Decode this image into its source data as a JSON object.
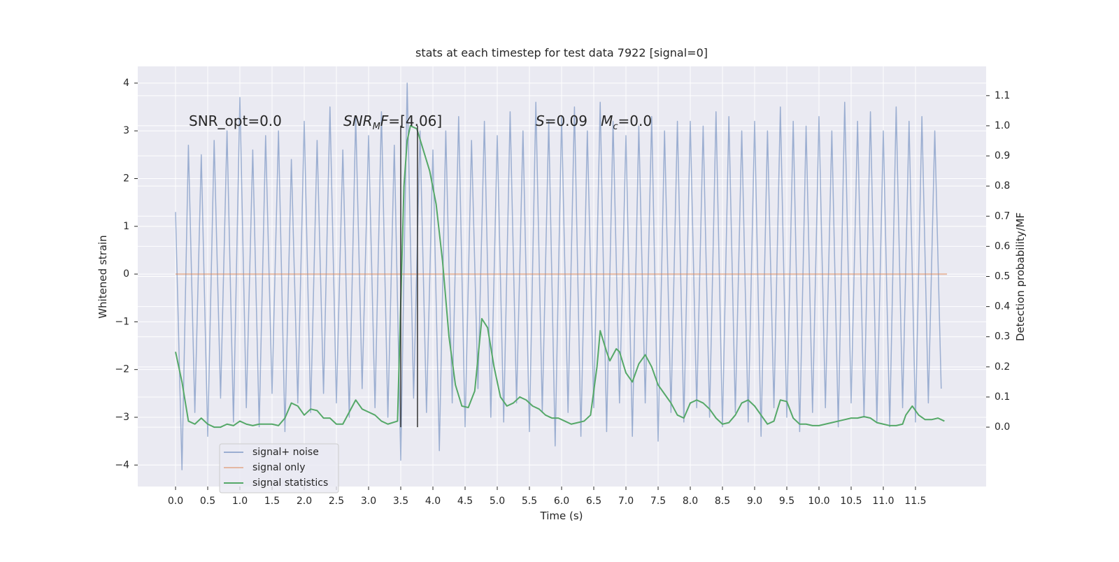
{
  "chart_data": {
    "type": "line",
    "title": "stats at each timestep for test data 7922 [signal=0]",
    "xlabel": "Time (s)",
    "ylabel": "Whitened strain",
    "y2label": "Detection probability/MF",
    "xlim": [
      -0.587,
      12.598
    ],
    "ylim": [
      -4.45,
      4.35
    ],
    "y2lim": [
      -0.197,
      1.197
    ],
    "xticks": [
      {
        "value": 0,
        "label": "0.0"
      },
      0.5,
      {
        "value": 1,
        "label": "1.0"
      },
      1.5,
      {
        "value": 2,
        "label": "2.0"
      },
      2.5,
      {
        "value": 3,
        "label": "3.0"
      },
      3.5,
      {
        "value": 4,
        "label": "4.0"
      },
      4.5,
      {
        "value": 5,
        "label": "5.0"
      },
      5.5,
      {
        "value": 6,
        "label": "6.0"
      },
      6.5,
      {
        "value": 7,
        "label": "7.0"
      },
      7.5,
      {
        "value": 8,
        "label": "8.0"
      },
      8.5,
      {
        "value": 9,
        "label": "9.0"
      },
      9.5,
      {
        "value": 10,
        "label": "10.0"
      },
      10.5,
      {
        "value": 11,
        "label": "11.0"
      },
      11.5
    ],
    "yticks": [
      {
        "value": -4,
        "label": "−4"
      },
      {
        "value": -3,
        "label": "−3"
      },
      {
        "value": -2,
        "label": "−2"
      },
      {
        "value": -1,
        "label": "−1"
      },
      0,
      1,
      2,
      3,
      4
    ],
    "y2ticks": [
      {
        "value": 0,
        "label": "0.0"
      },
      0.1,
      0.2,
      0.3,
      0.4,
      0.5,
      0.6,
      0.7,
      0.8,
      0.9,
      {
        "value": 1,
        "label": "1.0"
      },
      1.1
    ],
    "grid": true,
    "legend": "lower left",
    "series": [
      {
        "name": "signal+ noise",
        "color": "#4c72b0",
        "x": [
          0,
          0.1,
          0.2,
          0.3,
          0.4,
          0.5,
          0.6,
          0.7,
          0.8,
          0.9,
          1,
          1.1,
          1.2,
          1.3,
          1.4,
          1.5,
          1.6,
          1.7,
          1.8,
          1.9,
          2,
          2.1,
          2.2,
          2.3,
          2.4,
          2.5,
          2.6,
          2.7,
          2.8,
          2.9,
          3,
          3.1,
          3.2,
          3.3,
          3.4,
          3.5,
          3.6,
          3.7,
          3.8,
          3.9,
          4,
          4.1,
          4.2,
          4.3,
          4.4,
          4.5,
          4.6,
          4.7,
          4.8,
          4.9,
          5,
          5.1,
          5.2,
          5.3,
          5.4,
          5.5,
          5.6,
          5.7,
          5.8,
          5.9,
          6,
          6.1,
          6.2,
          6.3,
          6.4,
          6.5,
          6.6,
          6.7,
          6.8,
          6.9,
          7,
          7.1,
          7.2,
          7.3,
          7.4,
          7.5,
          7.6,
          7.7,
          7.8,
          7.9,
          8,
          8.1,
          8.2,
          8.3,
          8.4,
          8.5,
          8.6,
          8.7,
          8.8,
          8.9,
          9,
          9.1,
          9.2,
          9.3,
          9.4,
          9.5,
          9.6,
          9.7,
          9.8,
          9.9,
          10,
          10.1,
          10.2,
          10.3,
          10.4,
          10.5,
          10.6,
          10.7,
          10.8,
          10.9,
          11,
          11.1,
          11.2,
          11.3,
          11.4,
          11.5,
          11.6,
          11.7,
          11.8,
          11.9
        ],
        "values": [
          1.3,
          -4.1,
          2.7,
          -2.9,
          2.5,
          -3.4,
          2.8,
          -2.6,
          3.0,
          -3.1,
          3.7,
          -2.8,
          2.6,
          -3.2,
          2.9,
          -2.5,
          3.0,
          -3.3,
          2.4,
          -2.7,
          3.2,
          -2.9,
          2.8,
          -2.5,
          3.5,
          -2.7,
          2.6,
          -3.0,
          3.3,
          -2.4,
          2.9,
          -2.8,
          3.4,
          -3.0,
          2.7,
          -3.9,
          4.0,
          -2.6,
          3.0,
          -2.9,
          2.6,
          -3.7,
          3.0,
          -2.7,
          3.3,
          -3.2,
          2.8,
          -2.4,
          3.2,
          -3.0,
          2.9,
          -3.1,
          3.4,
          -2.7,
          3.0,
          -3.3,
          3.6,
          -2.9,
          3.2,
          -3.6,
          3.3,
          -2.9,
          3.5,
          -3.4,
          3.0,
          -2.8,
          3.6,
          -3.3,
          3.2,
          -2.7,
          2.9,
          -3.4,
          3.1,
          -2.7,
          3.3,
          -3.5,
          3.0,
          -2.9,
          3.2,
          -3.1,
          3.2,
          -2.8,
          3.1,
          -3.0,
          3.4,
          -3.2,
          3.3,
          -2.9,
          3.0,
          -3.1,
          3.2,
          -3.4,
          3.0,
          -2.8,
          3.5,
          -3.0,
          3.2,
          -3.3,
          3.1,
          -2.9,
          3.3,
          -2.8,
          3.0,
          -3.2,
          3.6,
          -2.7,
          3.2,
          -3.0,
          3.4,
          -3.1,
          3.0,
          -3.2,
          3.5,
          -2.8,
          3.2,
          -3.1,
          3.3,
          -2.7,
          3.0,
          -2.4
        ]
      },
      {
        "name": "signal only",
        "color": "#dd8452",
        "x": [
          0,
          11.99
        ],
        "values": [
          0,
          0
        ]
      },
      {
        "name": "signal statistics",
        "color": "#55a868",
        "axis": "y2",
        "x": [
          0,
          0.1,
          0.2,
          0.3,
          0.4,
          0.5,
          0.6,
          0.7,
          0.8,
          0.9,
          1,
          1.1,
          1.2,
          1.3,
          1.4,
          1.5,
          1.6,
          1.7,
          1.8,
          1.9,
          2,
          2.1,
          2.2,
          2.3,
          2.4,
          2.5,
          2.6,
          2.7,
          2.8,
          2.9,
          3,
          3.1,
          3.2,
          3.3,
          3.45,
          3.55,
          3.6,
          3.65,
          3.75,
          3.85,
          3.95,
          4.05,
          4.15,
          4.25,
          4.35,
          4.45,
          4.55,
          4.65,
          4.76,
          4.85,
          4.95,
          5.05,
          5.15,
          5.25,
          5.35,
          5.45,
          5.55,
          5.65,
          5.75,
          5.85,
          5.95,
          6.05,
          6.15,
          6.25,
          6.35,
          6.45,
          6.55,
          6.6,
          6.7,
          6.75,
          6.85,
          6.9,
          7,
          7.1,
          7.2,
          7.3,
          7.4,
          7.5,
          7.6,
          7.7,
          7.8,
          7.9,
          8,
          8.1,
          8.2,
          8.3,
          8.4,
          8.5,
          8.6,
          8.7,
          8.8,
          8.9,
          9,
          9.1,
          9.2,
          9.3,
          9.4,
          9.5,
          9.6,
          9.7,
          9.8,
          9.9,
          10,
          10.1,
          10.2,
          10.3,
          10.4,
          10.5,
          10.6,
          10.7,
          10.8,
          10.9,
          11,
          11.1,
          11.2,
          11.3,
          11.35,
          11.45,
          11.55,
          11.65,
          11.75,
          11.85,
          11.95
        ],
        "values": [
          0.25,
          0.15,
          0.02,
          0.01,
          0.03,
          0.01,
          0.0,
          0.0,
          0.01,
          0.005,
          0.02,
          0.01,
          0.005,
          0.01,
          0.01,
          0.01,
          0.005,
          0.03,
          0.08,
          0.07,
          0.04,
          0.06,
          0.055,
          0.03,
          0.03,
          0.01,
          0.01,
          0.05,
          0.09,
          0.06,
          0.05,
          0.04,
          0.02,
          0.01,
          0.02,
          0.8,
          0.95,
          1.0,
          0.99,
          0.92,
          0.85,
          0.74,
          0.55,
          0.3,
          0.14,
          0.07,
          0.065,
          0.12,
          0.36,
          0.33,
          0.2,
          0.1,
          0.07,
          0.08,
          0.1,
          0.09,
          0.07,
          0.06,
          0.04,
          0.03,
          0.03,
          0.02,
          0.01,
          0.015,
          0.02,
          0.04,
          0.2,
          0.32,
          0.25,
          0.22,
          0.26,
          0.25,
          0.18,
          0.15,
          0.21,
          0.24,
          0.2,
          0.14,
          0.11,
          0.08,
          0.04,
          0.03,
          0.08,
          0.09,
          0.08,
          0.06,
          0.03,
          0.01,
          0.015,
          0.04,
          0.08,
          0.09,
          0.07,
          0.04,
          0.01,
          0.02,
          0.09,
          0.085,
          0.03,
          0.01,
          0.01,
          0.005,
          0.005,
          0.01,
          0.015,
          0.02,
          0.025,
          0.03,
          0.03,
          0.035,
          0.03,
          0.015,
          0.01,
          0.005,
          0.005,
          0.01,
          0.04,
          0.07,
          0.04,
          0.025,
          0.025,
          0.03,
          0.02
        ]
      }
    ],
    "vlines": {
      "x": [
        3.5,
        3.76
      ],
      "axis": "y2",
      "ymin": 0,
      "ymax": 1,
      "color": "#333333"
    },
    "annotations": [
      {
        "parts": [
          "SNR_opt=0.0"
        ]
      },
      {
        "parts": [
          "SNR",
          "M",
          "F",
          "=[4.06]"
        ]
      },
      {
        "parts": [
          "S",
          "=0.09   ",
          "M",
          "c",
          "=0.0"
        ]
      }
    ]
  }
}
